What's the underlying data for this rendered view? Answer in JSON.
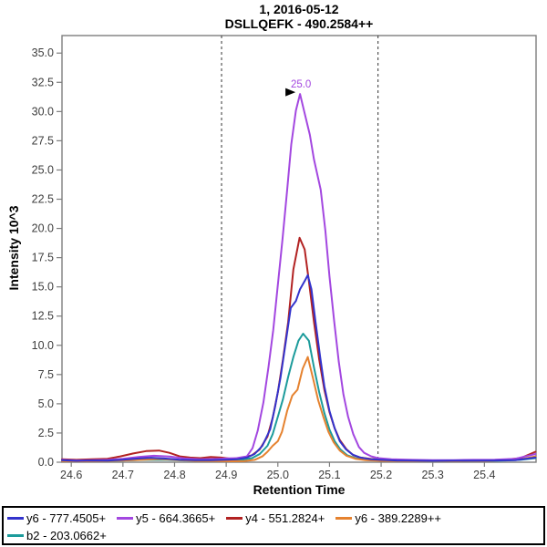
{
  "chart_data": {
    "type": "line",
    "title": "1, 2016-05-12",
    "subtitle": "DSLLQEFK - 490.2584++",
    "xlabel": "Retention Time",
    "ylabel": "Intensity 10^3",
    "xlim": [
      24.582,
      25.5
    ],
    "ylim": [
      0,
      36.5
    ],
    "xticks": [
      24.6,
      24.7,
      24.8,
      24.9,
      25.0,
      25.1,
      25.2,
      25.3,
      25.4
    ],
    "yticks": [
      0.0,
      2.5,
      5.0,
      7.5,
      10.0,
      12.5,
      15.0,
      17.5,
      20.0,
      22.5,
      25.0,
      27.5,
      30.0,
      32.5,
      35.0
    ],
    "grid": false,
    "legend_position": "bottom",
    "frame_color": "#7d7d7d",
    "tick_label_color": "#3d3d3d",
    "boundary_color": "#333333",
    "integration_boundaries": [
      24.891,
      25.194
    ],
    "annotation": {
      "text": "25.0",
      "rt": 25.043,
      "intensity": 31.5,
      "color": "#A347E0",
      "series": "y5 - 664.3665+"
    },
    "series": [
      {
        "id": "y6-777",
        "name": "y6 - 777.4505+",
        "color": "#3333CC",
        "points": [
          [
            24.582,
            0.18
          ],
          [
            24.61,
            0.12
          ],
          [
            24.64,
            0.15
          ],
          [
            24.67,
            0.13
          ],
          [
            24.7,
            0.22
          ],
          [
            24.73,
            0.32
          ],
          [
            24.755,
            0.38
          ],
          [
            24.78,
            0.32
          ],
          [
            24.81,
            0.22
          ],
          [
            24.84,
            0.18
          ],
          [
            24.87,
            0.18
          ],
          [
            24.9,
            0.22
          ],
          [
            24.92,
            0.25
          ],
          [
            24.94,
            0.4
          ],
          [
            24.955,
            0.7
          ],
          [
            24.97,
            1.4
          ],
          [
            24.985,
            2.8
          ],
          [
            24.995,
            4.8
          ],
          [
            25.005,
            7.2
          ],
          [
            25.015,
            10.2
          ],
          [
            25.025,
            13.2
          ],
          [
            25.035,
            13.8
          ],
          [
            25.043,
            14.8
          ],
          [
            25.052,
            15.5
          ],
          [
            25.058,
            16.0
          ],
          [
            25.065,
            14.8
          ],
          [
            25.073,
            12.0
          ],
          [
            25.082,
            9.0
          ],
          [
            25.09,
            6.5
          ],
          [
            25.1,
            4.4
          ],
          [
            25.11,
            2.9
          ],
          [
            25.12,
            1.8
          ],
          [
            25.132,
            1.1
          ],
          [
            25.145,
            0.65
          ],
          [
            25.16,
            0.4
          ],
          [
            25.18,
            0.25
          ],
          [
            25.2,
            0.2
          ],
          [
            25.23,
            0.15
          ],
          [
            25.26,
            0.13
          ],
          [
            25.3,
            0.12
          ],
          [
            25.34,
            0.13
          ],
          [
            25.38,
            0.13
          ],
          [
            25.42,
            0.15
          ],
          [
            25.46,
            0.18
          ],
          [
            25.499,
            0.4
          ]
        ]
      },
      {
        "id": "y5-664",
        "name": "y5 - 664.3665+",
        "color": "#A347E0",
        "points": [
          [
            24.582,
            0.2
          ],
          [
            24.61,
            0.15
          ],
          [
            24.64,
            0.18
          ],
          [
            24.67,
            0.2
          ],
          [
            24.7,
            0.3
          ],
          [
            24.73,
            0.45
          ],
          [
            24.76,
            0.55
          ],
          [
            24.79,
            0.48
          ],
          [
            24.82,
            0.32
          ],
          [
            24.85,
            0.25
          ],
          [
            24.88,
            0.28
          ],
          [
            24.9,
            0.32
          ],
          [
            24.92,
            0.35
          ],
          [
            24.94,
            0.5
          ],
          [
            24.951,
            1.2
          ],
          [
            24.961,
            2.7
          ],
          [
            24.972,
            5.1
          ],
          [
            24.982,
            8.2
          ],
          [
            24.991,
            11.3
          ],
          [
            25.0,
            15.2
          ],
          [
            25.009,
            19.1
          ],
          [
            25.018,
            23.3
          ],
          [
            25.026,
            27.2
          ],
          [
            25.035,
            30.1
          ],
          [
            25.043,
            31.5
          ],
          [
            25.051,
            30.0
          ],
          [
            25.062,
            28.0
          ],
          [
            25.07,
            25.9
          ],
          [
            25.083,
            23.3
          ],
          [
            25.092,
            19.8
          ],
          [
            25.1,
            15.9
          ],
          [
            25.109,
            12.1
          ],
          [
            25.118,
            8.6
          ],
          [
            25.127,
            5.8
          ],
          [
            25.136,
            3.9
          ],
          [
            25.146,
            2.4
          ],
          [
            25.157,
            1.3
          ],
          [
            25.167,
            0.8
          ],
          [
            25.181,
            0.5
          ],
          [
            25.194,
            0.35
          ],
          [
            25.22,
            0.25
          ],
          [
            25.26,
            0.2
          ],
          [
            25.3,
            0.18
          ],
          [
            25.34,
            0.18
          ],
          [
            25.38,
            0.2
          ],
          [
            25.42,
            0.22
          ],
          [
            25.46,
            0.3
          ],
          [
            25.499,
            0.7
          ]
        ]
      },
      {
        "id": "y4-551",
        "name": "y4 - 551.2824+",
        "color": "#B22222",
        "points": [
          [
            24.582,
            0.25
          ],
          [
            24.61,
            0.2
          ],
          [
            24.64,
            0.25
          ],
          [
            24.67,
            0.3
          ],
          [
            24.695,
            0.5
          ],
          [
            24.72,
            0.75
          ],
          [
            24.745,
            0.95
          ],
          [
            24.77,
            1.0
          ],
          [
            24.79,
            0.8
          ],
          [
            24.81,
            0.5
          ],
          [
            24.83,
            0.4
          ],
          [
            24.85,
            0.35
          ],
          [
            24.87,
            0.45
          ],
          [
            24.89,
            0.4
          ],
          [
            24.91,
            0.3
          ],
          [
            24.93,
            0.35
          ],
          [
            24.95,
            0.6
          ],
          [
            24.965,
            1.1
          ],
          [
            24.98,
            2.2
          ],
          [
            24.99,
            3.8
          ],
          [
            25.0,
            6.0
          ],
          [
            25.01,
            8.8
          ],
          [
            25.02,
            12.0
          ],
          [
            25.03,
            16.5
          ],
          [
            25.042,
            19.2
          ],
          [
            25.052,
            18.2
          ],
          [
            25.06,
            15.5
          ],
          [
            25.07,
            12.0
          ],
          [
            25.08,
            8.8
          ],
          [
            25.09,
            6.2
          ],
          [
            25.1,
            4.3
          ],
          [
            25.11,
            2.9
          ],
          [
            25.12,
            1.9
          ],
          [
            25.133,
            1.1
          ],
          [
            25.146,
            0.6
          ],
          [
            25.16,
            0.4
          ],
          [
            25.18,
            0.28
          ],
          [
            25.2,
            0.22
          ],
          [
            25.24,
            0.18
          ],
          [
            25.28,
            0.15
          ],
          [
            25.32,
            0.15
          ],
          [
            25.36,
            0.15
          ],
          [
            25.4,
            0.18
          ],
          [
            25.44,
            0.22
          ],
          [
            25.47,
            0.35
          ],
          [
            25.499,
            0.9
          ]
        ]
      },
      {
        "id": "y6-389",
        "name": "y6 - 389.2289++",
        "color": "#E5822F",
        "points": [
          [
            24.582,
            0.1
          ],
          [
            24.62,
            0.08
          ],
          [
            24.66,
            0.1
          ],
          [
            24.7,
            0.15
          ],
          [
            24.74,
            0.22
          ],
          [
            24.77,
            0.28
          ],
          [
            24.8,
            0.2
          ],
          [
            24.84,
            0.12
          ],
          [
            24.88,
            0.1
          ],
          [
            24.91,
            0.08
          ],
          [
            24.935,
            0.1
          ],
          [
            24.955,
            0.2
          ],
          [
            24.97,
            0.5
          ],
          [
            24.98,
            0.9
          ],
          [
            24.99,
            1.4
          ],
          [
            25.0,
            1.8
          ],
          [
            25.008,
            2.6
          ],
          [
            25.018,
            4.4
          ],
          [
            25.028,
            5.7
          ],
          [
            25.038,
            6.2
          ],
          [
            25.048,
            8.0
          ],
          [
            25.058,
            9.0
          ],
          [
            25.068,
            7.2
          ],
          [
            25.078,
            5.3
          ],
          [
            25.088,
            3.9
          ],
          [
            25.098,
            2.6
          ],
          [
            25.108,
            1.7
          ],
          [
            25.12,
            1.0
          ],
          [
            25.133,
            0.55
          ],
          [
            25.15,
            0.3
          ],
          [
            25.17,
            0.18
          ],
          [
            25.2,
            0.12
          ],
          [
            25.25,
            0.1
          ],
          [
            25.3,
            0.1
          ],
          [
            25.35,
            0.1
          ],
          [
            25.4,
            0.12
          ],
          [
            25.44,
            0.18
          ],
          [
            25.47,
            0.25
          ],
          [
            25.499,
            0.5
          ]
        ]
      },
      {
        "id": "b2-203",
        "name": "b2 - 203.0662+",
        "color": "#1C9B9B",
        "points": [
          [
            24.582,
            0.12
          ],
          [
            24.62,
            0.1
          ],
          [
            24.66,
            0.12
          ],
          [
            24.7,
            0.15
          ],
          [
            24.74,
            0.2
          ],
          [
            24.78,
            0.22
          ],
          [
            24.82,
            0.15
          ],
          [
            24.86,
            0.13
          ],
          [
            24.9,
            0.15
          ],
          [
            24.93,
            0.2
          ],
          [
            24.95,
            0.35
          ],
          [
            24.965,
            0.7
          ],
          [
            24.98,
            1.4
          ],
          [
            24.99,
            2.4
          ],
          [
            25.0,
            3.9
          ],
          [
            25.01,
            5.4
          ],
          [
            25.02,
            7.3
          ],
          [
            25.03,
            9.0
          ],
          [
            25.04,
            10.4
          ],
          [
            25.049,
            11.0
          ],
          [
            25.06,
            10.4
          ],
          [
            25.07,
            8.1
          ],
          [
            25.08,
            6.0
          ],
          [
            25.09,
            4.2
          ],
          [
            25.1,
            2.8
          ],
          [
            25.11,
            1.8
          ],
          [
            25.121,
            1.1
          ],
          [
            25.134,
            0.6
          ],
          [
            25.15,
            0.35
          ],
          [
            25.17,
            0.22
          ],
          [
            25.2,
            0.15
          ],
          [
            25.25,
            0.12
          ],
          [
            25.3,
            0.1
          ],
          [
            25.35,
            0.1
          ],
          [
            25.4,
            0.12
          ],
          [
            25.44,
            0.15
          ],
          [
            25.47,
            0.2
          ],
          [
            25.499,
            0.35
          ]
        ]
      }
    ]
  }
}
